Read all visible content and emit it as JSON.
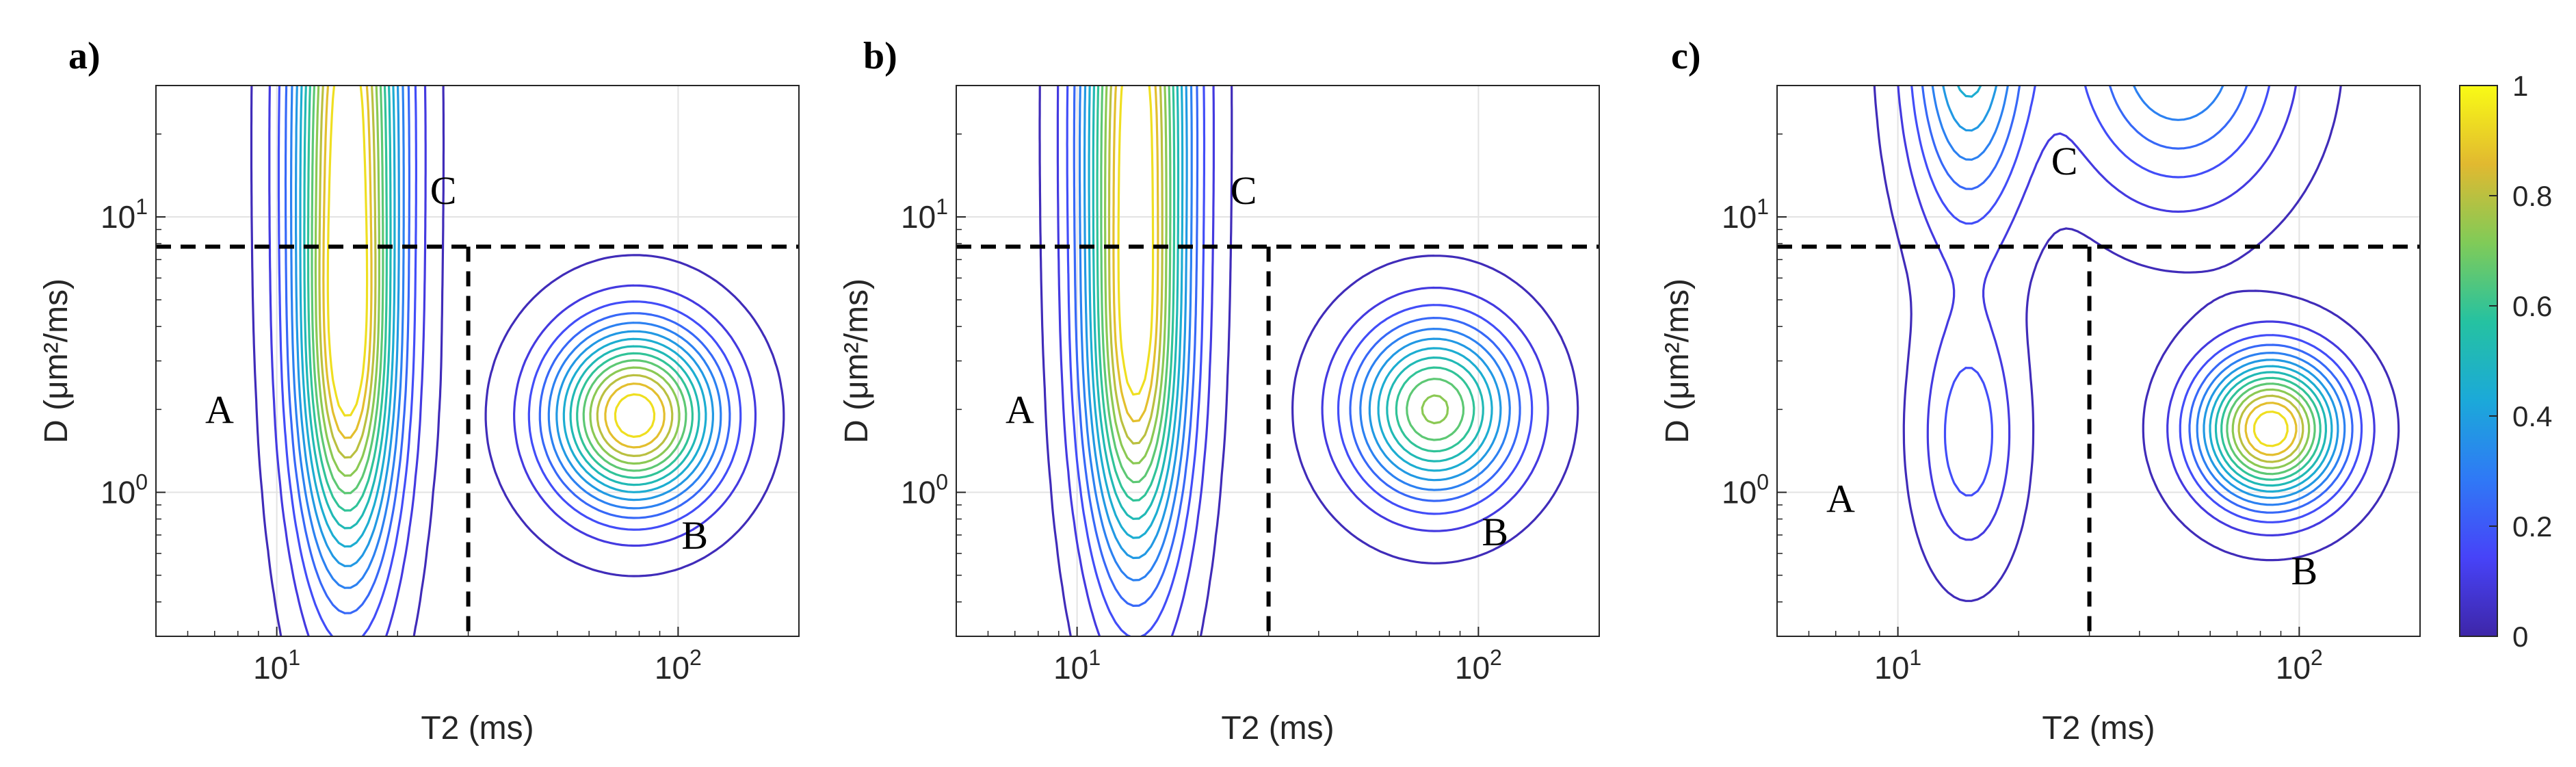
{
  "chart_data": [
    {
      "type": "contour",
      "panel_label": "a)",
      "xlabel": "T2 (ms)",
      "ylabel": "D (μm²/ms)",
      "xscale": "log",
      "yscale": "log",
      "xlim": [
        5,
        200
      ],
      "ylim": [
        0.3,
        30
      ],
      "x_ticks": [
        {
          "value": 10,
          "label": "10^1"
        },
        {
          "value": 100,
          "label": "10^2"
        }
      ],
      "y_ticks": [
        {
          "value": 1,
          "label": "10^0"
        },
        {
          "value": 10,
          "label": "10^1"
        }
      ],
      "grid": true,
      "threshold_lines": {
        "horizontal_D": 7.8,
        "vertical_T2": 30
      },
      "region_labels": [
        {
          "text": "A",
          "x": 7.2,
          "y": 2.0
        },
        {
          "text": "B",
          "x": 110,
          "y": 0.7
        },
        {
          "text": "C",
          "x": 26,
          "y": 12.5
        }
      ],
      "peaks": [
        {
          "name": "A",
          "t2": 15,
          "d": 22,
          "sx": 0.09,
          "sy": 0.9,
          "amp": 1.0
        },
        {
          "name": "A-tail",
          "t2": 15,
          "d": 2.2,
          "sx": 0.08,
          "sy": 0.45,
          "amp": 0.45
        },
        {
          "name": "B",
          "t2": 78,
          "d": 1.9,
          "sx": 0.14,
          "sy": 0.22,
          "amp": 1.0
        }
      ]
    },
    {
      "type": "contour",
      "panel_label": "b)",
      "xlabel": "T2 (ms)",
      "ylabel": "D (μm²/ms)",
      "xscale": "log",
      "yscale": "log",
      "xlim": [
        5,
        200
      ],
      "ylim": [
        0.3,
        30
      ],
      "x_ticks": [
        {
          "value": 10,
          "label": "10^1"
        },
        {
          "value": 100,
          "label": "10^2"
        }
      ],
      "y_ticks": [
        {
          "value": 1,
          "label": "10^0"
        },
        {
          "value": 10,
          "label": "10^1"
        }
      ],
      "grid": true,
      "threshold_lines": {
        "horizontal_D": 7.8,
        "vertical_T2": 30
      },
      "region_labels": [
        {
          "text": "A",
          "x": 7.2,
          "y": 2.0
        },
        {
          "text": "B",
          "x": 110,
          "y": 0.72
        },
        {
          "text": "C",
          "x": 26,
          "y": 12.5
        }
      ],
      "peaks": [
        {
          "name": "A",
          "t2": 14,
          "d": 24,
          "sx": 0.09,
          "sy": 0.9,
          "amp": 1.0
        },
        {
          "name": "A-tail",
          "t2": 14,
          "d": 2.2,
          "sx": 0.08,
          "sy": 0.45,
          "amp": 0.42
        },
        {
          "name": "B",
          "t2": 78,
          "d": 2.0,
          "sx": 0.14,
          "sy": 0.22,
          "amp": 0.75
        }
      ]
    },
    {
      "type": "contour",
      "panel_label": "c)",
      "xlabel": "T2 (ms)",
      "ylabel": "D (μm²/ms)",
      "xscale": "log",
      "yscale": "log",
      "xlim": [
        5,
        200
      ],
      "ylim": [
        0.3,
        30
      ],
      "x_ticks": [
        {
          "value": 10,
          "label": "10^1"
        },
        {
          "value": 100,
          "label": "10^2"
        }
      ],
      "y_ticks": [
        {
          "value": 1,
          "label": "10^0"
        },
        {
          "value": 10,
          "label": "10^1"
        }
      ],
      "grid": true,
      "threshold_lines": {
        "horizontal_D": 7.8,
        "vertical_T2": 30
      },
      "region_labels": [
        {
          "text": "A",
          "x": 7.2,
          "y": 0.95
        },
        {
          "text": "B",
          "x": 103,
          "y": 0.52
        },
        {
          "text": "C",
          "x": 26,
          "y": 16
        }
      ],
      "peaks": [
        {
          "name": "A",
          "t2": 15,
          "d": 45,
          "sx": 0.1,
          "sy": 0.45,
          "amp": 0.5
        },
        {
          "name": "A-tail",
          "t2": 15,
          "d": 1.6,
          "sx": 0.08,
          "sy": 0.3,
          "amp": 0.22
        },
        {
          "name": "C",
          "t2": 50,
          "d": 40,
          "sx": 0.18,
          "sy": 0.35,
          "amp": 0.4
        },
        {
          "name": "B",
          "t2": 85,
          "d": 1.7,
          "sx": 0.12,
          "sy": 0.18,
          "amp": 1.0
        }
      ]
    }
  ],
  "colorbar": {
    "ticks": [
      {
        "value": 0,
        "label": "0"
      },
      {
        "value": 0.2,
        "label": "0.2"
      },
      {
        "value": 0.4,
        "label": "0.4"
      },
      {
        "value": 0.6,
        "label": "0.6"
      },
      {
        "value": 0.8,
        "label": "0.8"
      },
      {
        "value": 1,
        "label": "1"
      }
    ],
    "range": [
      0,
      1
    ],
    "colormap": [
      "#3e26a8",
      "#4743f8",
      "#2f79f6",
      "#1ba9d9",
      "#25c2a1",
      "#80cb58",
      "#e1b930",
      "#f9fb15"
    ]
  },
  "contour_levels": [
    0.03,
    0.1,
    0.17,
    0.24,
    0.31,
    0.38,
    0.45,
    0.52,
    0.59,
    0.66,
    0.73,
    0.8,
    0.87,
    0.94
  ]
}
